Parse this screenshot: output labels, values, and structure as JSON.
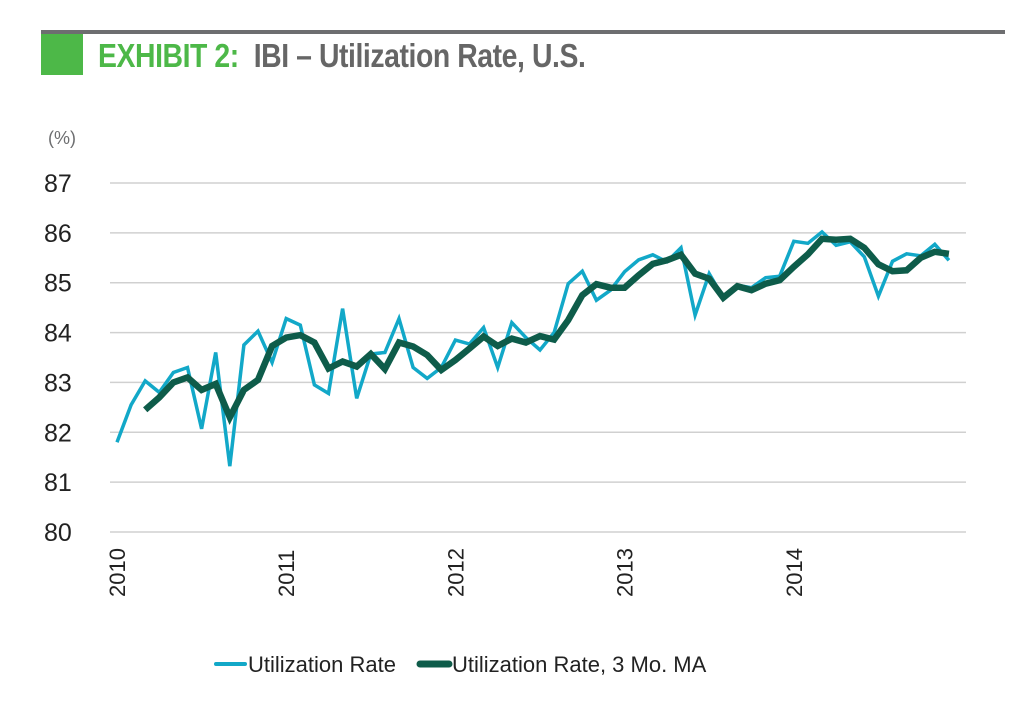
{
  "header": {
    "exhibit_label": "EXHIBIT 2:",
    "title": "IBI – Utilization Rate, U.S."
  },
  "colors": {
    "accent_green": "#4db848",
    "rule_gray": "#6d6e70",
    "title_gray": "#666666",
    "series_rate": "#12a8c8",
    "series_ma": "#0e5c4a",
    "grid": "#d0d0d0"
  },
  "chart_data": {
    "type": "line",
    "title": "IBI – Utilization Rate, U.S.",
    "ylabel": "(%)",
    "xlabel": "",
    "ylim": [
      80,
      87
    ],
    "yticks": [
      "80",
      "81",
      "82",
      "83",
      "84",
      "85",
      "86",
      "87"
    ],
    "xticks": [
      "2010",
      "2011",
      "2012",
      "2013",
      "2014"
    ],
    "x_frequency": "monthly",
    "x_start": "2010-01",
    "x_end": "2014-12",
    "grid": "horizontal",
    "legend_position": "bottom-center",
    "series": [
      {
        "name": "Utilization Rate",
        "values": [
          81.8,
          82.55,
          83.03,
          82.8,
          83.2,
          83.3,
          82.07,
          83.6,
          81.32,
          83.75,
          84.03,
          83.4,
          84.28,
          84.15,
          82.95,
          82.78,
          84.48,
          82.68,
          83.57,
          83.6,
          84.28,
          83.3,
          83.08,
          83.3,
          83.85,
          83.77,
          84.1,
          83.3,
          84.2,
          83.9,
          83.65,
          84.0,
          84.98,
          85.23,
          84.65,
          84.85,
          85.22,
          85.46,
          85.56,
          85.42,
          85.7,
          84.35,
          85.18,
          84.7,
          84.95,
          84.9,
          85.1,
          85.13,
          85.83,
          85.79,
          86.02,
          85.75,
          85.82,
          85.52,
          84.73,
          85.43,
          85.58,
          85.54,
          85.77,
          85.45
        ]
      },
      {
        "name": "Utilization Rate, 3 Mo. MA",
        "values": [
          null,
          null,
          82.45,
          82.7,
          83.0,
          83.1,
          82.85,
          82.97,
          82.3,
          82.85,
          83.05,
          83.73,
          83.9,
          83.95,
          83.8,
          83.28,
          83.42,
          83.32,
          83.57,
          83.27,
          83.8,
          83.72,
          83.55,
          83.25,
          83.45,
          83.68,
          83.92,
          83.73,
          83.88,
          83.8,
          83.93,
          83.86,
          84.25,
          84.75,
          84.97,
          84.9,
          84.9,
          85.15,
          85.38,
          85.45,
          85.56,
          85.18,
          85.08,
          84.7,
          84.93,
          84.85,
          84.98,
          85.05,
          85.32,
          85.57,
          85.88,
          85.86,
          85.88,
          85.7,
          85.37,
          85.23,
          85.25,
          85.5,
          85.62,
          85.58
        ]
      }
    ]
  }
}
